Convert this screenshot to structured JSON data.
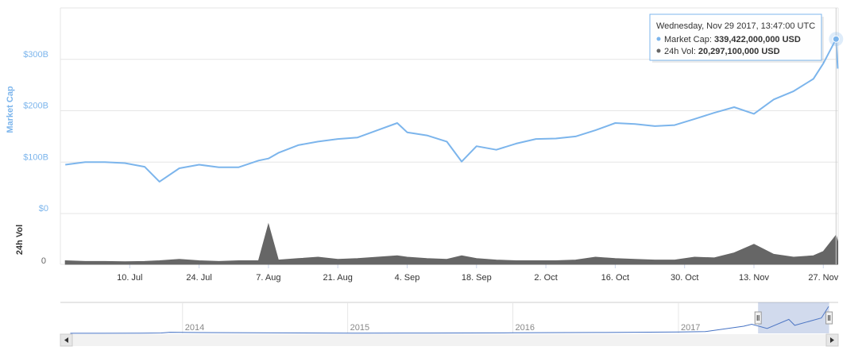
{
  "chart_data": {
    "type": "line",
    "ylabel": "Market Cap",
    "y2label": "24h Vol",
    "x": [
      "2017-06-27",
      "2017-07-01",
      "2017-07-05",
      "2017-07-09",
      "2017-07-13",
      "2017-07-16",
      "2017-07-20",
      "2017-07-24",
      "2017-07-28",
      "2017-08-01",
      "2017-08-05",
      "2017-08-07",
      "2017-08-09",
      "2017-08-13",
      "2017-08-17",
      "2017-08-21",
      "2017-08-25",
      "2017-08-29",
      "2017-09-02",
      "2017-09-04",
      "2017-09-08",
      "2017-09-12",
      "2017-09-15",
      "2017-09-18",
      "2017-09-22",
      "2017-09-26",
      "2017-09-30",
      "2017-10-04",
      "2017-10-08",
      "2017-10-12",
      "2017-10-16",
      "2017-10-20",
      "2017-10-24",
      "2017-10-28",
      "2017-11-01",
      "2017-11-05",
      "2017-11-09",
      "2017-11-13",
      "2017-11-17",
      "2017-11-21",
      "2017-11-25",
      "2017-11-27",
      "2017-11-29T13:47:00",
      "2017-11-29T22:00:00"
    ],
    "series": [
      {
        "color": "#7cb5ec",
        "values": [
          95000000000,
          100000000000,
          100000000000,
          98000000000,
          91000000000,
          62000000000,
          88000000000,
          95000000000,
          90000000000,
          90000000000,
          103000000000,
          107000000000,
          118000000000,
          133000000000,
          140000000000,
          145000000000,
          148000000000,
          162000000000,
          176000000000,
          158000000000,
          152000000000,
          140000000000,
          101000000000,
          131000000000,
          124000000000,
          136000000000,
          145000000000,
          146000000000,
          150000000000,
          162000000000,
          176000000000,
          174000000000,
          170000000000,
          172000000000,
          184000000000,
          196000000000,
          207000000000,
          194000000000,
          222000000000,
          238000000000,
          262000000000,
          292000000000,
          339422000000,
          282000000000
        ]
      },
      {
        "color": "#666666",
        "axis": "y2",
        "values": [
          2500000000,
          2000000000,
          2000000000,
          1800000000,
          2000000000,
          2500000000,
          3500000000,
          2500000000,
          2000000000,
          2500000000,
          2500000000,
          28000000000,
          3000000000,
          4000000000,
          5000000000,
          3500000000,
          4000000000,
          5000000000,
          6000000000,
          5000000000,
          4000000000,
          3500000000,
          6000000000,
          4000000000,
          3000000000,
          2500000000,
          2500000000,
          2500000000,
          3000000000,
          5000000000,
          4000000000,
          3500000000,
          3000000000,
          3000000000,
          5000000000,
          4500000000,
          8000000000,
          14000000000,
          7000000000,
          5000000000,
          6000000000,
          9000000000,
          20297100000,
          16000000000
        ]
      }
    ],
    "xlim": [
      "2017-06-26",
      "2017-11-30"
    ],
    "xticks": [
      {
        "value": "2017-07-10",
        "label": "10. Jul"
      },
      {
        "value": "2017-07-24",
        "label": "24. Jul"
      },
      {
        "value": "2017-08-07",
        "label": "7. Aug"
      },
      {
        "value": "2017-08-21",
        "label": "21. Aug"
      },
      {
        "value": "2017-09-04",
        "label": "4. Sep"
      },
      {
        "value": "2017-09-18",
        "label": "18. Sep"
      },
      {
        "value": "2017-10-02",
        "label": "2. Oct"
      },
      {
        "value": "2017-10-16",
        "label": "16. Oct"
      },
      {
        "value": "2017-10-30",
        "label": "30. Oct"
      },
      {
        "value": "2017-11-13",
        "label": "13. Nov"
      },
      {
        "value": "2017-11-27",
        "label": "27. Nov"
      }
    ],
    "ylim": [
      0,
      400000000000
    ],
    "yticks": [
      {
        "value": 0,
        "label": "$0"
      },
      {
        "value": 100000000000,
        "label": "$100B"
      },
      {
        "value": 200000000000,
        "label": "$200B"
      },
      {
        "value": 300000000000,
        "label": "$300B"
      }
    ],
    "y2lim": [
      0,
      35000000000
    ],
    "y2ticks": [
      0
    ],
    "grid": true,
    "tooltip": {
      "x": "2017-11-29T13:47:00",
      "header": "Wednesday, Nov 29 2017, 13:47:00 UTC",
      "items": [
        {
          "label": "Market Cap: ",
          "value": "339,422,000,000 USD"
        },
        {
          "label": "24h Vol: ",
          "value": "20,297,100,000 USD"
        }
      ]
    },
    "navigator": {
      "color": "#4572c4",
      "x": [
        "2013-04-28",
        "2013-10-01",
        "2013-11-15",
        "2013-12-04",
        "2014-01-15",
        "2014-06-01",
        "2015-01-15",
        "2015-07-01",
        "2016-01-01",
        "2016-07-01",
        "2017-01-01",
        "2017-03-01",
        "2017-05-25",
        "2017-06-12",
        "2017-07-16",
        "2017-09-02",
        "2017-09-15",
        "2017-11-13",
        "2017-11-29"
      ],
      "values": [
        1500000000,
        1800000000,
        5000000000,
        14000000000,
        11000000000,
        8000000000,
        3000000000,
        4000000000,
        7000000000,
        11000000000,
        17000000000,
        22000000000,
        90000000000,
        115000000000,
        62000000000,
        176000000000,
        101000000000,
        194000000000,
        339000000000
      ],
      "xlim": [
        "2013-04-06",
        "2017-12-20"
      ],
      "ylim": [
        0,
        370000000000
      ],
      "xticks": [
        {
          "value": "2014-01-01",
          "label": "2014"
        },
        {
          "value": "2015-01-01",
          "label": "2015"
        },
        {
          "value": "2016-01-01",
          "label": "2016"
        },
        {
          "value": "2017-01-01",
          "label": "2017"
        }
      ]
    }
  }
}
